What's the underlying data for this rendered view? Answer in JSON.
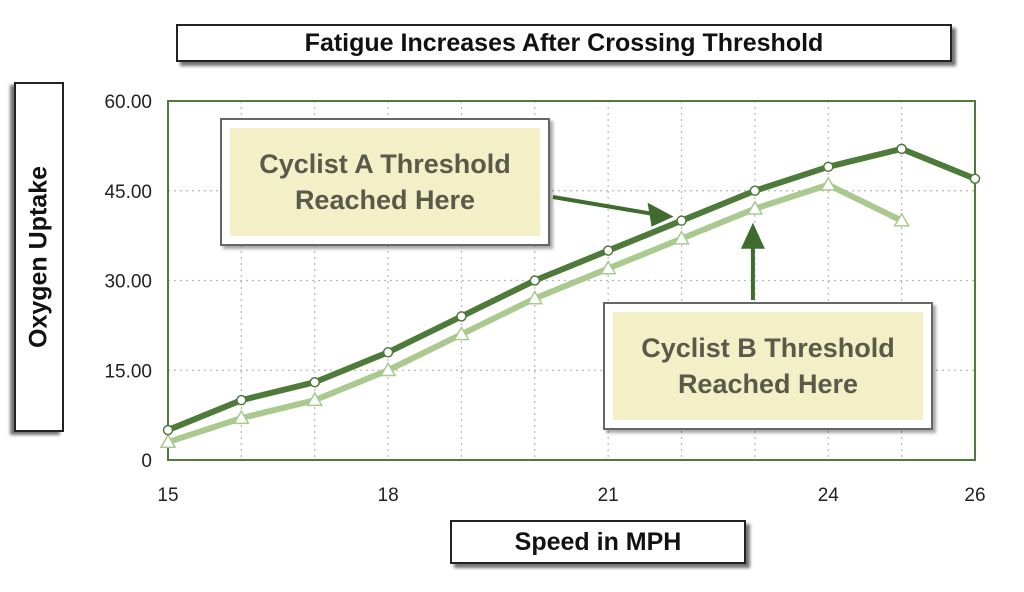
{
  "chart_data": {
    "type": "line",
    "title": "Fatigue Increases After Crossing Threshold",
    "xlabel": "Speed in MPH",
    "ylabel": "Oxygen Uptake",
    "xlim": [
      15,
      26
    ],
    "ylim": [
      0,
      60
    ],
    "x_ticks": [
      "15",
      "18",
      "21",
      "24",
      "26"
    ],
    "x_tick_values": [
      15,
      18,
      21,
      24,
      26
    ],
    "y_ticks": [
      "0",
      "15.00",
      "30.00",
      "45.00",
      "60.00"
    ],
    "y_tick_values": [
      0,
      15,
      30,
      45,
      60
    ],
    "grid": true,
    "series": [
      {
        "x": [
          15,
          16,
          17,
          18,
          19,
          20,
          21,
          22,
          23,
          24,
          25,
          26
        ],
        "values": [
          5,
          10,
          13,
          18,
          24,
          30,
          35,
          40,
          45,
          49,
          52,
          47
        ],
        "color": "#4e7a3a",
        "marker": "circle"
      },
      {
        "x": [
          15,
          16,
          17,
          18,
          19,
          20,
          21,
          22,
          23,
          24,
          25
        ],
        "values": [
          3,
          7,
          10,
          15,
          21,
          27,
          32,
          37,
          42,
          46,
          40
        ],
        "color": "#a9c98f",
        "marker": "triangle"
      }
    ],
    "annotations": [
      {
        "line1": "Cyclist A Threshold",
        "line2": "Reached Here",
        "points_to": {
          "x": 22,
          "y": 40
        }
      },
      {
        "line1": "Cyclist B Threshold",
        "line2": "Reached Here",
        "points_to": {
          "x": 23,
          "y": 42
        }
      }
    ]
  }
}
